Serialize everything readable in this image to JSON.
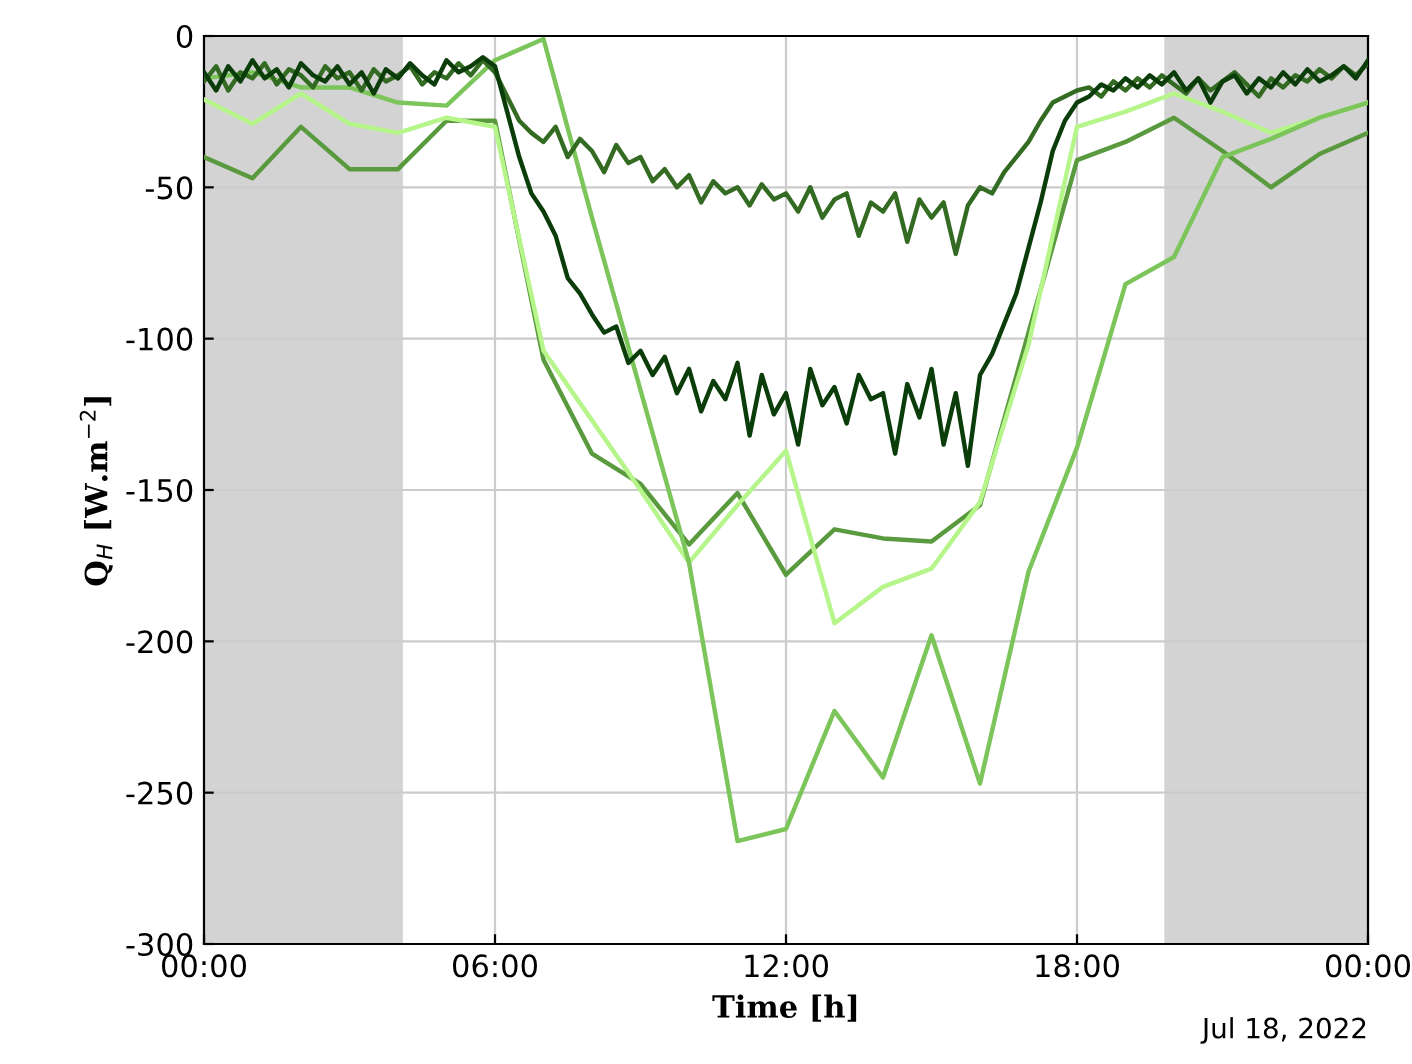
{
  "chart_data": {
    "type": "line",
    "xlabel": "Time [h]",
    "ylabel": "Q$_{H}$ [W.m$^{−2}$]",
    "annotations": [
      "Jul 18, 2022"
    ],
    "xlim": [
      0,
      24
    ],
    "xticks": [
      {
        "value": 0,
        "label": "00:00"
      },
      {
        "value": 6,
        "label": "06:00"
      },
      {
        "value": 12,
        "label": "12:00"
      },
      {
        "value": 18,
        "label": "18:00"
      },
      {
        "value": 24,
        "label": "00:00"
      }
    ],
    "ylim": [
      -300,
      0
    ],
    "yticks": [
      -300,
      -250,
      -200,
      -150,
      -100,
      -50,
      0
    ],
    "grid": true,
    "legend": false,
    "bands": [
      {
        "axis": "x",
        "from": 0,
        "to": 4.1,
        "color": "#d3d3d3"
      },
      {
        "axis": "x",
        "from": 19.8,
        "to": 24,
        "color": "#d3d3d3"
      }
    ],
    "series": [
      {
        "color": "#5a9a3e",
        "x": [
          0,
          1,
          2,
          3,
          4,
          5,
          6,
          7,
          8,
          9,
          10,
          11,
          12,
          13,
          14,
          15,
          16,
          17,
          18,
          19,
          20,
          21,
          22,
          23,
          24
        ],
        "values": [
          -40,
          -47,
          -30,
          -44,
          -44,
          -28,
          -28,
          -107,
          -138,
          -148,
          -168,
          -151,
          -178,
          -163,
          -166,
          -167,
          -155,
          -98,
          -41,
          -35,
          -27,
          -38,
          -50,
          -39,
          -32
        ]
      },
      {
        "color": "#b5f58a",
        "x": [
          0,
          1,
          2,
          3,
          4,
          5,
          6,
          7,
          8,
          9,
          10,
          11,
          12,
          13,
          14,
          15,
          16,
          17,
          18,
          19,
          20,
          21,
          22,
          23,
          24
        ],
        "values": [
          -21,
          -29,
          -19,
          -29,
          -32,
          -27,
          -30,
          -104,
          -127,
          -150,
          -174,
          -155,
          -137,
          -194,
          -182,
          -176,
          -154,
          -102,
          -30,
          -25,
          -19,
          -25,
          -32,
          -27,
          -22
        ]
      },
      {
        "color": "#7cc55a",
        "x": [
          0,
          1,
          2,
          3,
          4,
          5,
          6,
          7,
          8,
          9,
          10,
          11,
          12,
          13,
          14,
          15,
          16,
          17,
          18,
          19,
          20,
          21,
          22,
          23,
          24
        ],
        "values": [
          -14,
          -12,
          -17,
          -17,
          -22,
          -23,
          -8,
          -1,
          -60,
          -117,
          -174,
          -266,
          -262,
          -223,
          -245,
          -198,
          -247,
          -177,
          -136,
          -82,
          -73,
          -40,
          -34,
          -27,
          -22
        ]
      },
      {
        "color": "#346b22",
        "x": [
          0,
          0.25,
          0.5,
          0.75,
          1,
          1.25,
          1.5,
          1.75,
          2,
          2.25,
          2.5,
          2.75,
          3,
          3.25,
          3.5,
          3.75,
          4,
          4.25,
          4.5,
          4.75,
          5,
          5.25,
          5.5,
          5.75,
          6,
          6.25,
          6.5,
          6.75,
          7,
          7.25,
          7.5,
          7.75,
          8,
          8.25,
          8.5,
          8.75,
          9,
          9.25,
          9.5,
          9.75,
          10,
          10.25,
          10.5,
          10.75,
          11,
          11.25,
          11.5,
          11.75,
          12,
          12.25,
          12.5,
          12.75,
          13,
          13.25,
          13.5,
          13.75,
          14,
          14.25,
          14.5,
          14.75,
          15,
          15.25,
          15.5,
          15.75,
          16,
          16.25,
          16.5,
          16.75,
          17,
          17.25,
          17.5,
          17.75,
          18,
          18.25,
          18.5,
          18.75,
          19,
          19.25,
          19.5,
          19.75,
          20,
          20.25,
          20.5,
          20.75,
          21,
          21.25,
          21.5,
          21.75,
          22,
          22.25,
          22.5,
          22.75,
          23,
          23.25,
          23.5,
          23.75,
          24
        ],
        "values": [
          -15,
          -10,
          -18,
          -12,
          -14,
          -9,
          -16,
          -11,
          -13,
          -17,
          -10,
          -14,
          -12,
          -18,
          -11,
          -15,
          -13,
          -10,
          -16,
          -12,
          -14,
          -9,
          -13,
          -8,
          -12,
          -20,
          -28,
          -32,
          -35,
          -30,
          -40,
          -34,
          -38,
          -45,
          -36,
          -42,
          -40,
          -48,
          -44,
          -50,
          -46,
          -55,
          -48,
          -52,
          -50,
          -56,
          -49,
          -54,
          -52,
          -58,
          -50,
          -60,
          -54,
          -52,
          -66,
          -55,
          -58,
          -52,
          -68,
          -54,
          -60,
          -55,
          -72,
          -56,
          -50,
          -52,
          -45,
          -40,
          -35,
          -28,
          -22,
          -20,
          -18,
          -17,
          -20,
          -15,
          -18,
          -14,
          -17,
          -13,
          -16,
          -19,
          -14,
          -18,
          -15,
          -12,
          -16,
          -20,
          -14,
          -17,
          -13,
          -15,
          -11,
          -14,
          -10,
          -13,
          -9
        ]
      },
      {
        "color": "#0b3d0b",
        "x": [
          0,
          0.25,
          0.5,
          0.75,
          1,
          1.25,
          1.5,
          1.75,
          2,
          2.25,
          2.5,
          2.75,
          3,
          3.25,
          3.5,
          3.75,
          4,
          4.25,
          4.5,
          4.75,
          5,
          5.25,
          5.5,
          5.75,
          6,
          6.25,
          6.5,
          6.75,
          7,
          7.25,
          7.5,
          7.75,
          8,
          8.25,
          8.5,
          8.75,
          9,
          9.25,
          9.5,
          9.75,
          10,
          10.25,
          10.5,
          10.75,
          11,
          11.25,
          11.5,
          11.75,
          12,
          12.25,
          12.5,
          12.75,
          13,
          13.25,
          13.5,
          13.75,
          14,
          14.25,
          14.5,
          14.75,
          15,
          15.25,
          15.5,
          15.75,
          16,
          16.25,
          16.5,
          16.75,
          17,
          17.25,
          17.5,
          17.75,
          18,
          18.25,
          18.5,
          18.75,
          19,
          19.25,
          19.5,
          19.75,
          20,
          20.25,
          20.5,
          20.75,
          21,
          21.25,
          21.5,
          21.75,
          22,
          22.25,
          22.5,
          22.75,
          23,
          23.25,
          23.5,
          23.75,
          24
        ],
        "values": [
          -12,
          -18,
          -10,
          -15,
          -8,
          -14,
          -11,
          -17,
          -9,
          -13,
          -15,
          -10,
          -16,
          -12,
          -19,
          -11,
          -14,
          -9,
          -13,
          -16,
          -8,
          -12,
          -10,
          -7,
          -10,
          -25,
          -40,
          -52,
          -58,
          -66,
          -80,
          -85,
          -92,
          -98,
          -96,
          -108,
          -104,
          -112,
          -106,
          -118,
          -110,
          -124,
          -114,
          -120,
          -108,
          -132,
          -112,
          -125,
          -118,
          -135,
          -110,
          -122,
          -116,
          -128,
          -112,
          -120,
          -118,
          -138,
          -115,
          -126,
          -110,
          -135,
          -118,
          -142,
          -112,
          -105,
          -95,
          -85,
          -70,
          -55,
          -38,
          -28,
          -22,
          -20,
          -16,
          -18,
          -14,
          -17,
          -13,
          -16,
          -12,
          -18,
          -14,
          -22,
          -15,
          -13,
          -19,
          -14,
          -17,
          -12,
          -16,
          -11,
          -15,
          -13,
          -10,
          -14,
          -8
        ]
      }
    ]
  }
}
